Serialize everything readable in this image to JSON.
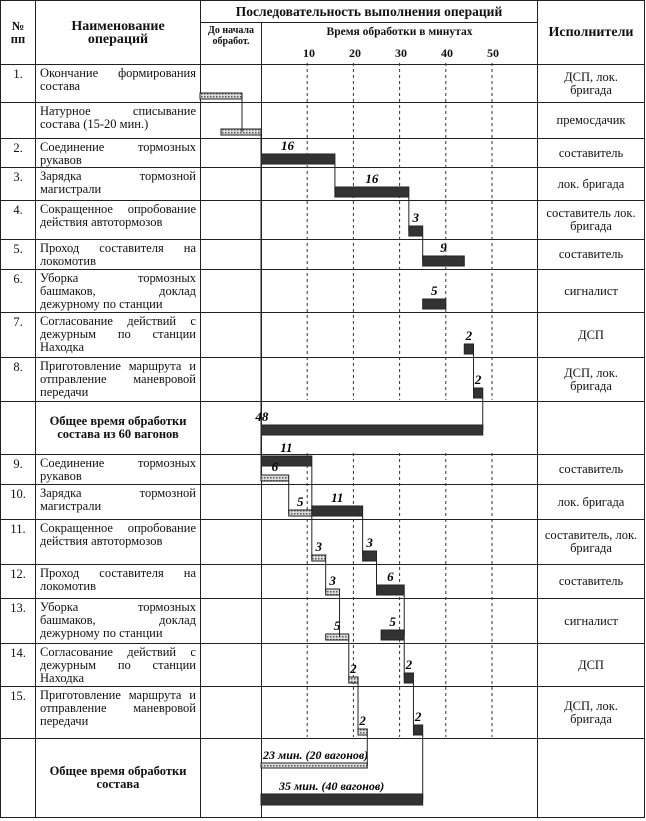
{
  "header": {
    "num": "№ пп",
    "name": "Наименование операций",
    "sequence": "Последовательность выполнения операций",
    "before": "До начала обработ.",
    "time": "Время обработки в минутах",
    "executors": "Исполнители",
    "ticks": [
      "10",
      "20",
      "30",
      "40",
      "50"
    ]
  },
  "rows": [
    {
      "num": "1.",
      "name": "Окончание формирования состава",
      "exec": "ДСП, лок. бригада"
    },
    {
      "num": "",
      "name": "Натурное списывание состава (15-20 мин.)",
      "exec": "премосдачик"
    },
    {
      "num": "2.",
      "name": "Соединение тормозных рукавов",
      "exec": "составитель"
    },
    {
      "num": "3.",
      "name": "Зарядка тормозной магистрали",
      "exec": "лок. бригада"
    },
    {
      "num": "4.",
      "name": "Сокращенное опробование действия автотормозов",
      "exec": "составитель лок. бригада"
    },
    {
      "num": "5.",
      "name": "Проход составителя на локомотив",
      "exec": "составитель"
    },
    {
      "num": "6.",
      "name": "Уборка тормозных башмаков, доклад дежурному по станции",
      "exec": "сигналист"
    },
    {
      "num": "7.",
      "name": "Согласование действий с дежурным по станции Находка",
      "exec": "ДСП"
    },
    {
      "num": "8.",
      "name": "Приготовление маршрута и отправление маневровой передачи",
      "exec": "ДСП, лок. бригада"
    },
    {
      "num": "",
      "name": "Общее время обработки состава из 60 вагонов",
      "exec": "",
      "total": true
    },
    {
      "num": "9.",
      "name": "Соединение тормозных рукавов",
      "exec": "составитель"
    },
    {
      "num": "10.",
      "name": "Зарядка тормозной магистрали",
      "exec": "лок. бригада"
    },
    {
      "num": "11.",
      "name": "Сокращенное опробование действия автотормозов",
      "exec": "составитель, лок. бригада"
    },
    {
      "num": "12.",
      "name": "Проход составителя на локомотив",
      "exec": "составитель"
    },
    {
      "num": "13.",
      "name": "Уборка тормозных башмаков, доклад дежурному по станции",
      "exec": "сигналист"
    },
    {
      "num": "14.",
      "name": "Согласование действий с дежурным по станции Находка",
      "exec": "ДСП"
    },
    {
      "num": "15.",
      "name": "Приготовление маршрута и отправление маневровой передачи",
      "exec": "ДСП, лок. бригада"
    },
    {
      "num": "",
      "name": "Общее время обработки состава",
      "exec": "",
      "total": true
    }
  ],
  "bars": [
    {
      "row": 0,
      "start": -13,
      "dur": 9,
      "style": "hatched",
      "label": "",
      "pre": true
    },
    {
      "row": 1,
      "start": -8.5,
      "dur": 8.5,
      "style": "hatched",
      "label": "",
      "pre": true
    },
    {
      "row": 2,
      "start": 0,
      "dur": 16,
      "style": "solid",
      "label": "16"
    },
    {
      "row": 3,
      "start": 16,
      "dur": 16,
      "style": "solid",
      "label": "16"
    },
    {
      "row": 4,
      "start": 32,
      "dur": 3,
      "style": "solid",
      "label": "3"
    },
    {
      "row": 5,
      "start": 35,
      "dur": 9,
      "style": "solid",
      "label": "9"
    },
    {
      "row": 6,
      "start": 35,
      "dur": 5,
      "style": "solid",
      "label": "5"
    },
    {
      "row": 7,
      "start": 44,
      "dur": 2,
      "style": "solid",
      "label": "2"
    },
    {
      "row": 8,
      "start": 46,
      "dur": 2,
      "style": "solid",
      "label": "2"
    },
    {
      "row": 9,
      "start": 0,
      "dur": 48,
      "style": "solid",
      "label": "48"
    },
    {
      "row": 10,
      "start": 0,
      "dur": 11,
      "style": "solid",
      "label": "11"
    },
    {
      "row": 10,
      "start": 0,
      "dur": 6,
      "style": "hatched",
      "label": "6"
    },
    {
      "row": 11,
      "start": 6,
      "dur": 5,
      "style": "hatched",
      "label": "5"
    },
    {
      "row": 11,
      "start": 11,
      "dur": 11,
      "style": "solid",
      "label": "11"
    },
    {
      "row": 12,
      "start": 11,
      "dur": 3,
      "style": "hatched",
      "label": "3"
    },
    {
      "row": 12,
      "start": 22,
      "dur": 3,
      "style": "solid",
      "label": "3"
    },
    {
      "row": 13,
      "start": 14,
      "dur": 3,
      "style": "hatched",
      "label": "3"
    },
    {
      "row": 13,
      "start": 25,
      "dur": 6,
      "style": "solid",
      "label": "6"
    },
    {
      "row": 14,
      "start": 14,
      "dur": 5,
      "style": "hatched",
      "label": "5"
    },
    {
      "row": 14,
      "start": 26,
      "dur": 5,
      "style": "solid",
      "label": "5"
    },
    {
      "row": 15,
      "start": 19,
      "dur": 2,
      "style": "hatched",
      "label": "2"
    },
    {
      "row": 15,
      "start": 31,
      "dur": 2,
      "style": "solid",
      "label": "2"
    },
    {
      "row": 16,
      "start": 21,
      "dur": 2,
      "style": "hatched",
      "label": "2"
    },
    {
      "row": 16,
      "start": 33,
      "dur": 2,
      "style": "solid",
      "label": "2"
    },
    {
      "row": 17,
      "start": 0,
      "dur": 23,
      "style": "hatched",
      "label": "23 мин. (20 вагонов)"
    },
    {
      "row": 17,
      "start": 0,
      "dur": 35,
      "style": "solid",
      "label": "35 мин. (40 вагонов)"
    }
  ],
  "colors": {
    "solid": "#333333",
    "hatched": "#bbbbbb",
    "line": "#222222"
  }
}
